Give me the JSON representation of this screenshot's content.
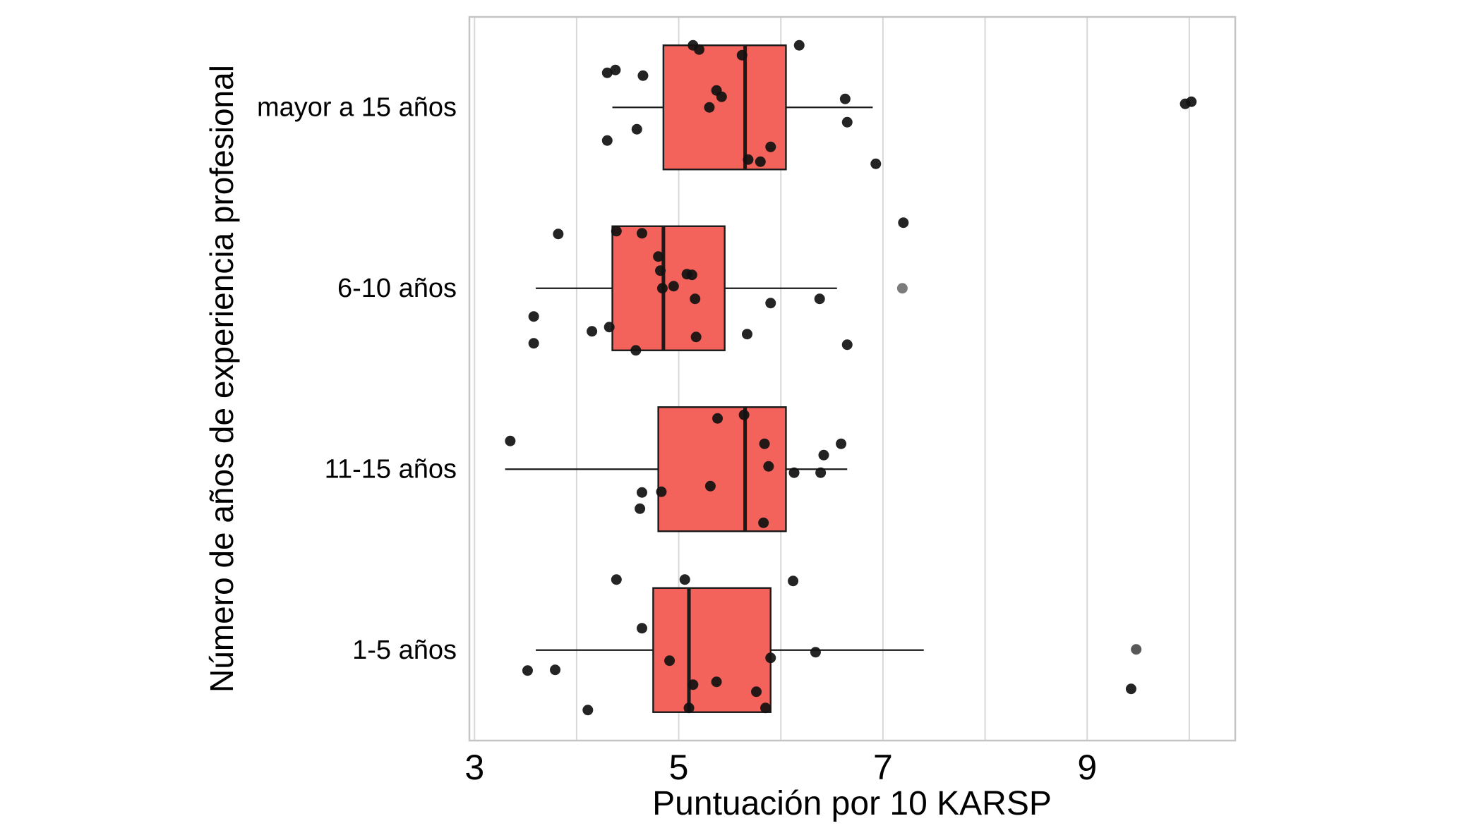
{
  "figure": {
    "xlabel": "Puntuación por 10 KARSP",
    "ylabel": "Número de años de experiencia profesional"
  },
  "chart_data": {
    "type": "boxplot",
    "orientation": "horizontal",
    "title": "",
    "xlabel": "Puntuación por 10 KARSP",
    "ylabel": "Número de años de experiencia profesional",
    "xlim": [
      2.95,
      10.45
    ],
    "x_ticks": [
      3,
      5,
      7,
      9
    ],
    "x_gridlines": [
      3,
      4,
      5,
      6,
      7,
      8,
      9,
      10
    ],
    "grid": "vertical-only",
    "legend": "none",
    "box_fill": "#F4625C",
    "box_stroke": "#1A1A1A",
    "point_color": "#111111",
    "gridline_color": "#D8D8D8",
    "panel_border_color": "#C4C4C4",
    "categories": [
      "mayor a 15 años",
      "6-10 años",
      "11-15 años",
      "1-5 años"
    ],
    "series": [
      {
        "category": "mayor a 15 años",
        "whisker_low": 4.35,
        "q1": 4.85,
        "median": 5.65,
        "q3": 6.05,
        "whisker_high": 6.9,
        "outliers": [
          9.95,
          10.0
        ],
        "points": [
          [
            5.14,
            -88
          ],
          [
            5.2,
            -82
          ],
          [
            5.62,
            -74
          ],
          [
            6.18,
            -88
          ],
          [
            4.38,
            -53
          ],
          [
            4.3,
            -49
          ],
          [
            4.65,
            -45
          ],
          [
            5.37,
            -24
          ],
          [
            5.42,
            -15
          ],
          [
            5.3,
            0
          ],
          [
            6.63,
            -12
          ],
          [
            9.96,
            -5
          ],
          [
            10.02,
            -8
          ],
          [
            4.59,
            31
          ],
          [
            4.3,
            47
          ],
          [
            6.65,
            21
          ],
          [
            5.9,
            56
          ],
          [
            5.68,
            74
          ],
          [
            5.8,
            77
          ],
          [
            6.93,
            80
          ]
        ]
      },
      {
        "category": "6-10 años",
        "whisker_low": 3.6,
        "q1": 4.35,
        "median": 4.85,
        "q3": 5.45,
        "whisker_high": 6.55,
        "outliers": [
          7.2
        ],
        "points": [
          [
            3.82,
            -77
          ],
          [
            4.39,
            -81
          ],
          [
            4.64,
            -78
          ],
          [
            7.2,
            -93
          ],
          [
            4.8,
            -45
          ],
          [
            4.82,
            -25
          ],
          [
            5.08,
            -20
          ],
          [
            5.13,
            -19
          ],
          [
            4.84,
            0
          ],
          [
            4.95,
            -3
          ],
          [
            5.16,
            15
          ],
          [
            5.9,
            21
          ],
          [
            6.38,
            15
          ],
          [
            7.19,
            0,
            0.55
          ],
          [
            3.58,
            40
          ],
          [
            4.15,
            61
          ],
          [
            4.32,
            55
          ],
          [
            5.17,
            69
          ],
          [
            5.67,
            65
          ],
          [
            3.58,
            78
          ],
          [
            4.58,
            88
          ],
          [
            6.65,
            80
          ]
        ]
      },
      {
        "category": "11-15 años",
        "whisker_low": 3.3,
        "q1": 4.8,
        "median": 5.65,
        "q3": 6.05,
        "whisker_high": 6.65,
        "outliers": [],
        "points": [
          [
            5.38,
            -72
          ],
          [
            5.64,
            -77
          ],
          [
            3.35,
            -40
          ],
          [
            5.84,
            -36
          ],
          [
            6.59,
            -36
          ],
          [
            5.88,
            -4
          ],
          [
            6.13,
            5
          ],
          [
            6.42,
            -20
          ],
          [
            6.39,
            5
          ],
          [
            5.31,
            24
          ],
          [
            4.64,
            33
          ],
          [
            4.83,
            32
          ],
          [
            4.62,
            56
          ],
          [
            5.83,
            76
          ]
        ]
      },
      {
        "category": "1-5 años",
        "whisker_low": 3.6,
        "q1": 4.75,
        "median": 5.1,
        "q3": 5.9,
        "whisker_high": 7.4,
        "outliers": [
          9.45,
          9.5
        ],
        "points": [
          [
            4.39,
            -100
          ],
          [
            5.06,
            -100
          ],
          [
            6.12,
            -98
          ],
          [
            4.64,
            -31
          ],
          [
            4.91,
            15
          ],
          [
            6.34,
            3
          ],
          [
            9.48,
            -1,
            0.7
          ],
          [
            3.52,
            29
          ],
          [
            3.79,
            28
          ],
          [
            5.9,
            11
          ],
          [
            5.14,
            49
          ],
          [
            5.37,
            45
          ],
          [
            5.76,
            59
          ],
          [
            9.43,
            55
          ],
          [
            4.11,
            85
          ],
          [
            5.1,
            82
          ],
          [
            5.85,
            82
          ]
        ]
      }
    ]
  }
}
